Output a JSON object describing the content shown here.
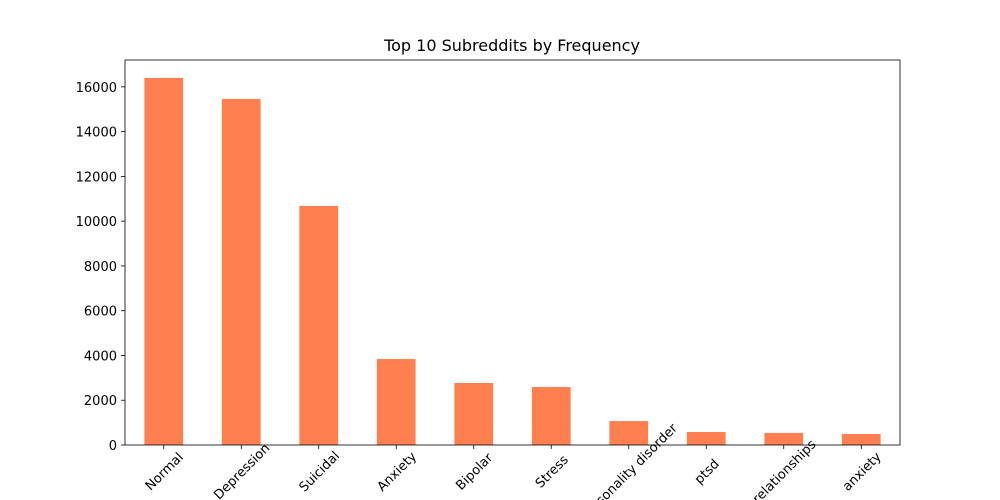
{
  "chart_data": {
    "type": "bar",
    "title": "Top 10 Subreddits by Frequency",
    "categories": [
      "Normal",
      "Depression",
      "Suicidal",
      "Anxiety",
      "Bipolar",
      "Stress",
      "Personality disorder",
      "ptsd",
      "relationships",
      "anxiety"
    ],
    "values": [
      16400,
      15460,
      10680,
      3840,
      2770,
      2590,
      1070,
      580,
      540,
      490
    ],
    "color": "#ff7f50",
    "ylim": [
      0,
      17200
    ],
    "yticks": [
      0,
      2000,
      4000,
      6000,
      8000,
      10000,
      12000,
      14000,
      16000
    ],
    "grid": false
  }
}
